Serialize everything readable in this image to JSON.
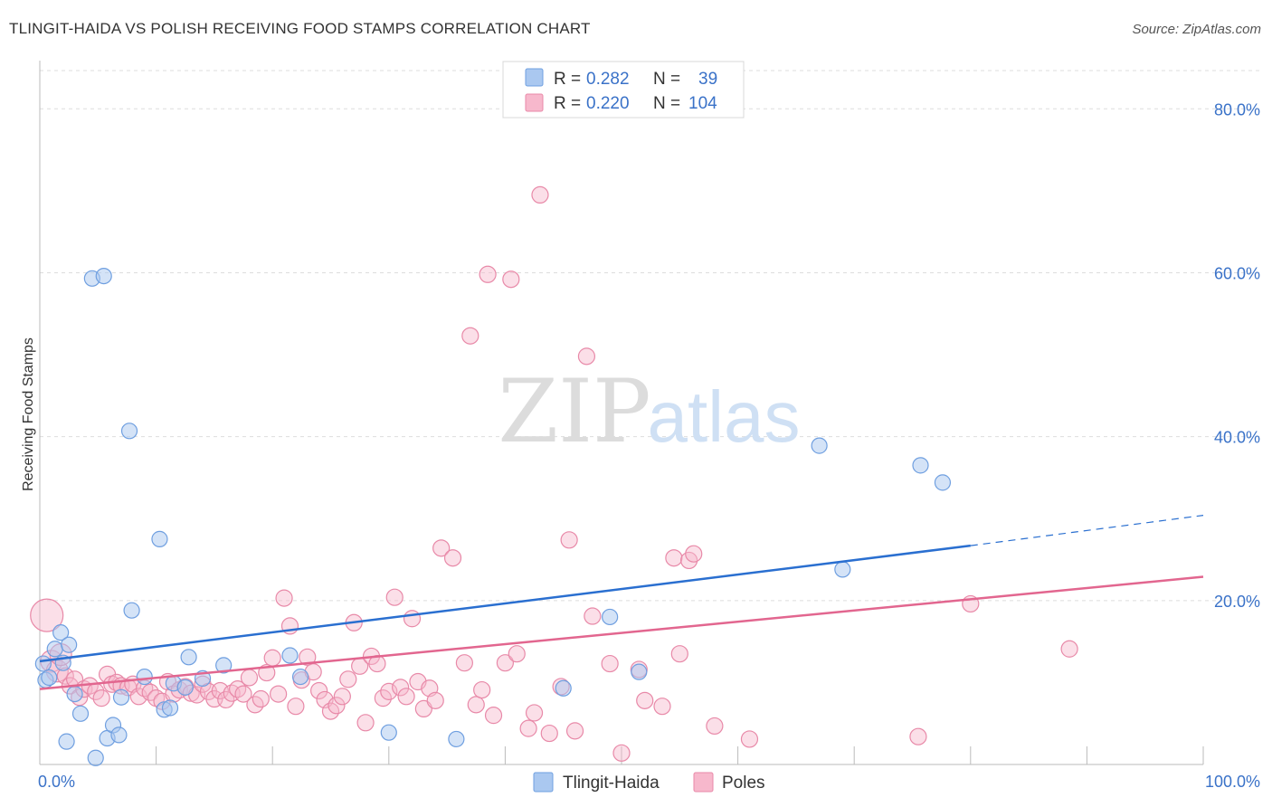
{
  "header": {
    "title": "TLINGIT-HAIDA VS POLISH RECEIVING FOOD STAMPS CORRELATION CHART",
    "source": "Source: ZipAtlas.com"
  },
  "watermark": {
    "zip": "ZIP",
    "atlas": "atlas"
  },
  "colors": {
    "blue_fill": "#aac8f0",
    "blue_stroke": "#6f9fe0",
    "blue_line": "#2a6fd0",
    "pink_fill": "#f7b8cc",
    "pink_stroke": "#e889a8",
    "pink_line": "#e2668f",
    "tick_label": "#3a72c8",
    "grid": "#dddddd"
  },
  "legend": {
    "rows": [
      {
        "r_label": "R =",
        "r_value": "0.282",
        "n_label": "N =",
        "n_value": "39"
      },
      {
        "r_label": "R =",
        "r_value": "0.220",
        "n_label": "N =",
        "n_value": "104"
      }
    ]
  },
  "chart_data": {
    "type": "scatter",
    "title": "TLINGIT-HAIDA VS POLISH RECEIVING FOOD STAMPS CORRELATION CHART",
    "xlabel": "",
    "ylabel": "Receiving Food Stamps",
    "xlim": [
      0,
      100
    ],
    "ylim": [
      0,
      85
    ],
    "x_tick_labels": [
      "0.0%",
      "100.0%"
    ],
    "y_ticks": [
      20,
      40,
      60,
      80
    ],
    "y_tick_labels": [
      "20.0%",
      "40.0%",
      "60.0%",
      "80.0%"
    ],
    "grid": true,
    "legend_position": "top-center",
    "series": [
      {
        "name": "Tlingit-Haida",
        "r": 0.282,
        "n": 39,
        "trend": {
          "x0": 0,
          "y0": 12.6,
          "x1": 80,
          "y1": 26.7,
          "dash_x1": 100,
          "dash_y1": 30.4
        },
        "points": [
          [
            0.3,
            12.3
          ],
          [
            0.5,
            10.3
          ],
          [
            0.8,
            10.6
          ],
          [
            1.3,
            14.1
          ],
          [
            1.8,
            16.1
          ],
          [
            2.0,
            12.4
          ],
          [
            2.3,
            2.8
          ],
          [
            2.5,
            14.6
          ],
          [
            3.0,
            8.6
          ],
          [
            3.5,
            6.2
          ],
          [
            4.5,
            59.3
          ],
          [
            5.5,
            59.6
          ],
          [
            5.8,
            3.2
          ],
          [
            6.3,
            4.8
          ],
          [
            6.8,
            3.6
          ],
          [
            7.0,
            8.2
          ],
          [
            7.7,
            40.7
          ],
          [
            7.9,
            18.8
          ],
          [
            9.0,
            10.7
          ],
          [
            10.3,
            27.5
          ],
          [
            10.7,
            6.7
          ],
          [
            11.2,
            6.9
          ],
          [
            11.5,
            9.9
          ],
          [
            12.5,
            9.4
          ],
          [
            12.8,
            13.1
          ],
          [
            14.0,
            10.5
          ],
          [
            15.8,
            12.1
          ],
          [
            21.5,
            13.3
          ],
          [
            22.4,
            10.7
          ],
          [
            30.0,
            3.9
          ],
          [
            35.8,
            3.1
          ],
          [
            45.0,
            9.3
          ],
          [
            49.0,
            18.0
          ],
          [
            51.5,
            11.3
          ],
          [
            67.0,
            38.9
          ],
          [
            75.7,
            36.5
          ],
          [
            77.6,
            34.4
          ],
          [
            69.0,
            23.8
          ],
          [
            4.8,
            0.8
          ]
        ]
      },
      {
        "name": "Poles",
        "r": 0.22,
        "n": 104,
        "trend": {
          "x0": 0,
          "y0": 9.2,
          "x1": 100,
          "y1": 22.9
        },
        "points": [
          [
            0.6,
            18.2
          ],
          [
            1.0,
            12.6
          ],
          [
            1.5,
            11.4
          ],
          [
            1.8,
            13.4
          ],
          [
            2.2,
            10.8
          ],
          [
            2.6,
            9.6
          ],
          [
            3.0,
            10.4
          ],
          [
            3.4,
            8.2
          ],
          [
            3.8,
            9.2
          ],
          [
            4.3,
            9.6
          ],
          [
            4.8,
            8.9
          ],
          [
            5.3,
            8.1
          ],
          [
            5.8,
            11.0
          ],
          [
            6.2,
            9.8
          ],
          [
            6.6,
            10.0
          ],
          [
            7.0,
            9.6
          ],
          [
            7.6,
            9.4
          ],
          [
            8.0,
            9.8
          ],
          [
            8.5,
            8.3
          ],
          [
            9.0,
            9.3
          ],
          [
            9.5,
            8.8
          ],
          [
            10.0,
            8.1
          ],
          [
            10.5,
            7.7
          ],
          [
            11.0,
            10.1
          ],
          [
            11.5,
            8.6
          ],
          [
            12.0,
            9.1
          ],
          [
            12.5,
            9.5
          ],
          [
            13.0,
            8.7
          ],
          [
            13.5,
            8.5
          ],
          [
            14.0,
            9.8
          ],
          [
            14.5,
            8.9
          ],
          [
            15.0,
            8.0
          ],
          [
            15.5,
            9.0
          ],
          [
            16.0,
            7.9
          ],
          [
            16.5,
            8.7
          ],
          [
            17.0,
            9.2
          ],
          [
            17.5,
            8.6
          ],
          [
            18.0,
            10.6
          ],
          [
            18.5,
            7.3
          ],
          [
            19.0,
            8.0
          ],
          [
            19.5,
            11.2
          ],
          [
            20.0,
            13.0
          ],
          [
            20.5,
            8.6
          ],
          [
            21.0,
            20.3
          ],
          [
            21.5,
            16.9
          ],
          [
            22.0,
            7.1
          ],
          [
            22.5,
            10.3
          ],
          [
            23.0,
            13.1
          ],
          [
            23.5,
            11.3
          ],
          [
            24.0,
            9.0
          ],
          [
            24.5,
            7.9
          ],
          [
            25.0,
            6.5
          ],
          [
            25.5,
            7.2
          ],
          [
            26.0,
            8.3
          ],
          [
            26.5,
            10.4
          ],
          [
            27.0,
            17.3
          ],
          [
            27.5,
            12.0
          ],
          [
            28.0,
            5.1
          ],
          [
            28.5,
            13.2
          ],
          [
            29.0,
            12.3
          ],
          [
            29.5,
            8.1
          ],
          [
            30.0,
            8.9
          ],
          [
            30.5,
            20.4
          ],
          [
            31.0,
            9.4
          ],
          [
            31.5,
            8.3
          ],
          [
            32.0,
            17.8
          ],
          [
            32.5,
            10.1
          ],
          [
            33.0,
            6.8
          ],
          [
            33.5,
            9.3
          ],
          [
            34.0,
            7.8
          ],
          [
            34.5,
            26.4
          ],
          [
            35.5,
            25.2
          ],
          [
            36.5,
            12.4
          ],
          [
            37.0,
            52.3
          ],
          [
            37.5,
            7.3
          ],
          [
            38.0,
            9.1
          ],
          [
            38.5,
            59.8
          ],
          [
            39.0,
            6.0
          ],
          [
            40.0,
            12.4
          ],
          [
            40.5,
            59.2
          ],
          [
            41.0,
            13.5
          ],
          [
            42.0,
            4.4
          ],
          [
            42.5,
            6.3
          ],
          [
            43.0,
            69.5
          ],
          [
            43.8,
            3.8
          ],
          [
            44.8,
            9.5
          ],
          [
            45.5,
            27.4
          ],
          [
            46.0,
            4.1
          ],
          [
            47.0,
            49.8
          ],
          [
            47.5,
            18.1
          ],
          [
            49.0,
            12.3
          ],
          [
            50.0,
            1.4
          ],
          [
            51.5,
            11.6
          ],
          [
            52.0,
            7.8
          ],
          [
            53.5,
            7.1
          ],
          [
            54.5,
            25.2
          ],
          [
            55.0,
            13.5
          ],
          [
            55.8,
            24.9
          ],
          [
            56.2,
            25.7
          ],
          [
            58.0,
            4.7
          ],
          [
            61.0,
            3.1
          ],
          [
            75.5,
            3.4
          ],
          [
            80.0,
            19.6
          ],
          [
            88.5,
            14.1
          ]
        ]
      }
    ]
  }
}
